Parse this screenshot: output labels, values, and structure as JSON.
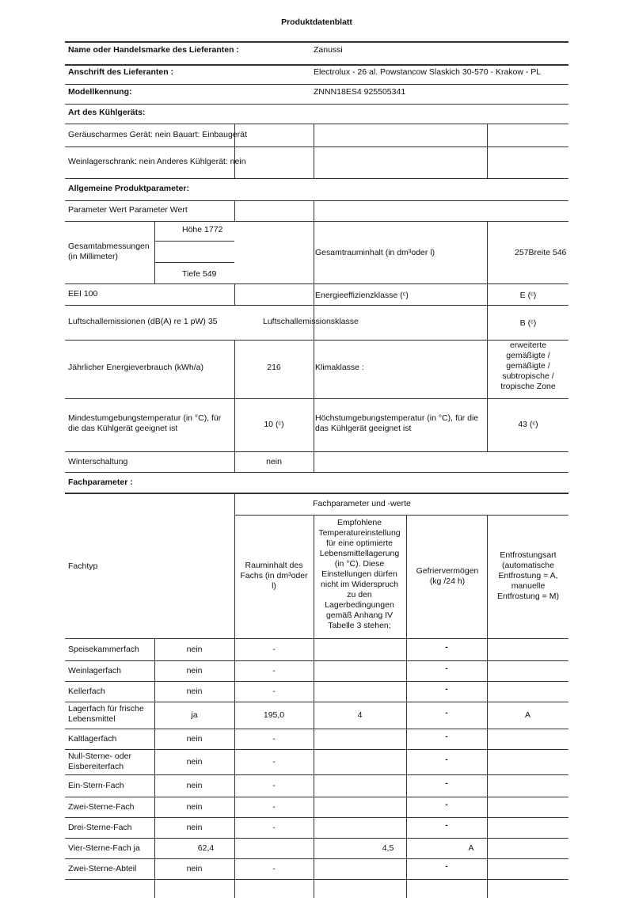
{
  "title": "Produktdatenblatt",
  "supplier": {
    "name_label": "Name oder Handelsmarke des Lieferanten :",
    "name": "Zanussi",
    "address_label": "Anschrift des Lieferanten :",
    "address": "Electrolux - 26 al. Powstancow Slaskich 30-570 - Krakow - PL",
    "model_label": "Modellkennung:",
    "model": "ZNNN18ES4 925505341"
  },
  "appliance_type": {
    "heading": "Art des Kühlgeräts:",
    "row1": "Geräuscharmes Gerät: nein Bauart: Einbaugerät",
    "row2": "Weinlagerschrank: nein Anderes Kühlgerät: nein"
  },
  "general": {
    "heading": "Allgemeine Produktparameter:",
    "param_header": "Parameter Wert Parameter Wert",
    "dimensions_label": "Gesamtabmessungen (in Millimeter)",
    "height": "Höhe 1772",
    "depth": "Tiefe 549",
    "total_volume_label": "Gesamtrauminhalt (in dm³oder l)",
    "total_volume_value": "257Breite 546",
    "eei": "EEI 100",
    "energy_class_label": "Energieeffizienzklasse (ᶜ)",
    "energy_class": "E (ᶜ)",
    "noise_label": "Luftschallemissionen (dB(A) re 1 pW) 35",
    "noise_class_label": "Luftschallemissionsklasse",
    "noise_class": "B (ᶜ)",
    "annual_energy_label": "Jährlicher Energieverbrauch (kWh/a)",
    "annual_energy": "216",
    "climate_label": "Klimaklasse :",
    "climate": "erweiterte gemäßigte / gemäßigte / subtropische / tropische Zone",
    "min_temp_label": "Mindestumgebungstemperatur (in °C), für die das Kühlgerät geeignet ist",
    "min_temp": "10 (ᶜ)",
    "max_temp_label": "Höchstumgebungstemperatur (in °C), für die das Kühlgerät geeignet ist",
    "max_temp": "43 (ᶜ)",
    "winter_label": "Winterschaltung",
    "winter": "nein"
  },
  "compartments": {
    "heading": "Fachparameter :",
    "group_header": "Fachparameter und -werte",
    "col_type": "Fachtyp",
    "col_volume": "Rauminhalt des Fachs (in dm³oder l)",
    "col_temp": "Empfohlene Temperatureinstellung für eine optimierte Lebensmittellagerung (in °C). Diese Einstellungen dürfen nicht im Widerspruch zu den Lagerbedingungen gemäß Anhang IV Tabelle 3 stehen;",
    "col_freeze": "Gefriervermögen (kg /24 h)",
    "col_defrost": "Entfrostungsart (automatische Entfrostung = A, manuelle Entfrostung = M)",
    "rows": [
      [
        "Speisekammerfach",
        "nein",
        "-",
        "",
        "-",
        ""
      ],
      [
        "Weinlagerfach",
        "nein",
        "-",
        "",
        "-",
        ""
      ],
      [
        "Kellerfach",
        "nein",
        "-",
        "",
        "-",
        ""
      ],
      [
        "Lagerfach für frische Lebensmittel",
        "ja",
        "195,0",
        "4",
        "-",
        "A"
      ],
      [
        "Kaltlagerfach",
        "nein",
        "-",
        "",
        "-",
        ""
      ],
      [
        "Null-Sterne- oder Eisbereiterfach",
        "nein",
        "-",
        "",
        "-",
        ""
      ],
      [
        "Ein-Stern-Fach",
        "nein",
        "-",
        "",
        "-",
        ""
      ],
      [
        "Zwei-Sterne-Fach",
        "nein",
        "-",
        "",
        "-",
        ""
      ],
      [
        "Drei-Sterne-Fach",
        "nein",
        "-",
        "",
        "-",
        ""
      ],
      [
        "Vier-Sterne-Fach ja",
        "",
        "62,4",
        "4,5",
        "A",
        ""
      ],
      [
        "Zwei-Sterne-Abteil",
        "nein",
        "-",
        "",
        "-",
        ""
      ]
    ]
  }
}
